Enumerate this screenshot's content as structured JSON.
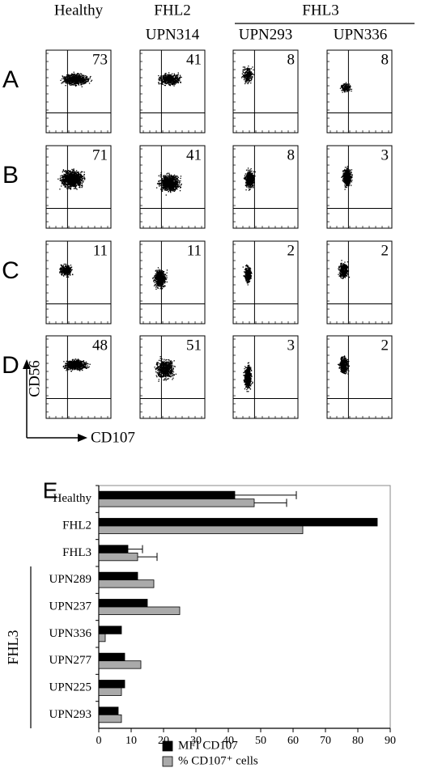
{
  "flow_panels": {
    "headers": {
      "healthy": "Healthy",
      "fhl2": "FHL2",
      "fhl2_patient": "UPN314",
      "fhl3": "FHL3",
      "fhl3_patients": [
        "UPN293",
        "UPN336"
      ]
    },
    "rows": [
      {
        "label": "A",
        "values": [
          73,
          41,
          8,
          8
        ]
      },
      {
        "label": "B",
        "values": [
          71,
          41,
          8,
          3
        ]
      },
      {
        "label": "C",
        "values": [
          11,
          11,
          2,
          2
        ]
      },
      {
        "label": "D",
        "values": [
          48,
          51,
          3,
          2
        ]
      }
    ],
    "y_axis_label": "CD56",
    "x_axis_label": "CD107"
  },
  "chart_data": {
    "type": "barh",
    "panel_label": "E",
    "categories": [
      "Healthy",
      "FHL2",
      "FHL3",
      "UPN289",
      "UPN237",
      "UPN336",
      "UPN277",
      "UPN225",
      "UPN293"
    ],
    "group_label": "FHL3",
    "series": [
      {
        "name": "MFI CD107",
        "color": "#000000",
        "values": [
          42,
          86,
          9,
          12,
          15,
          7,
          8,
          8,
          6
        ],
        "errors": [
          19,
          null,
          4.5,
          null,
          null,
          null,
          null,
          null,
          null
        ]
      },
      {
        "name": "% CD107⁺ cells",
        "color": "#aaaaaa",
        "values": [
          48,
          63,
          12,
          17,
          25,
          2,
          13,
          7,
          7
        ],
        "errors": [
          10,
          null,
          6,
          null,
          null,
          null,
          null,
          null,
          null
        ]
      }
    ],
    "xlim": [
      0,
      90
    ],
    "xticks": [
      0,
      10,
      20,
      30,
      40,
      50,
      60,
      70,
      80,
      90
    ]
  }
}
